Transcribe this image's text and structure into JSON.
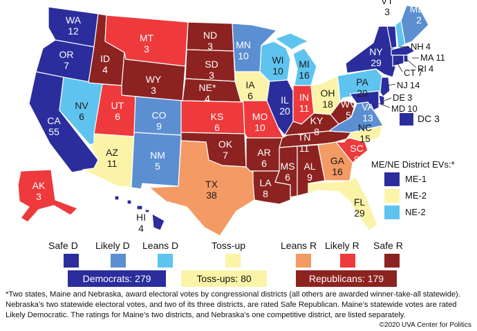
{
  "colors": {
    "safe_d": "#2b2d9c",
    "likely_d": "#5b8fd2",
    "leans_d": "#5ec4ef",
    "tossup": "#fbf4a8",
    "leans_r": "#f49a64",
    "likely_r": "#ee3a3c",
    "safe_r": "#8c2321"
  },
  "states": [
    {
      "abbr": "WA",
      "ev": "12",
      "rating": "safe_d"
    },
    {
      "abbr": "OR",
      "ev": "7",
      "rating": "safe_d"
    },
    {
      "abbr": "CA",
      "ev": "55",
      "rating": "safe_d"
    },
    {
      "abbr": "NV",
      "ev": "6",
      "rating": "leans_d"
    },
    {
      "abbr": "ID",
      "ev": "4",
      "rating": "safe_r"
    },
    {
      "abbr": "MT",
      "ev": "3",
      "rating": "likely_r"
    },
    {
      "abbr": "WY",
      "ev": "3",
      "rating": "safe_r"
    },
    {
      "abbr": "UT",
      "ev": "6",
      "rating": "likely_r"
    },
    {
      "abbr": "AZ",
      "ev": "11",
      "rating": "tossup"
    },
    {
      "abbr": "CO",
      "ev": "9",
      "rating": "likely_d"
    },
    {
      "abbr": "NM",
      "ev": "5",
      "rating": "likely_d"
    },
    {
      "abbr": "ND",
      "ev": "3",
      "rating": "safe_r"
    },
    {
      "abbr": "SD",
      "ev": "3",
      "rating": "safe_r"
    },
    {
      "abbr": "NE*",
      "ev": "4",
      "rating": "safe_r"
    },
    {
      "abbr": "KS",
      "ev": "6",
      "rating": "likely_r"
    },
    {
      "abbr": "OK",
      "ev": "7",
      "rating": "safe_r"
    },
    {
      "abbr": "TX",
      "ev": "38",
      "rating": "leans_r"
    },
    {
      "abbr": "MN",
      "ev": "10",
      "rating": "likely_d"
    },
    {
      "abbr": "IA",
      "ev": "6",
      "rating": "tossup"
    },
    {
      "abbr": "MO",
      "ev": "10",
      "rating": "likely_r"
    },
    {
      "abbr": "AR",
      "ev": "6",
      "rating": "safe_r"
    },
    {
      "abbr": "LA",
      "ev": "8",
      "rating": "safe_r"
    },
    {
      "abbr": "WI",
      "ev": "10",
      "rating": "leans_d"
    },
    {
      "abbr": "IL",
      "ev": "20",
      "rating": "safe_d"
    },
    {
      "abbr": "MI",
      "ev": "16",
      "rating": "leans_d"
    },
    {
      "abbr": "IN",
      "ev": "11",
      "rating": "likely_r"
    },
    {
      "abbr": "OH",
      "ev": "18",
      "rating": "tossup"
    },
    {
      "abbr": "KY",
      "ev": "8",
      "rating": "safe_r"
    },
    {
      "abbr": "TN",
      "ev": "11",
      "rating": "safe_r"
    },
    {
      "abbr": "MS",
      "ev": "6",
      "rating": "safe_r"
    },
    {
      "abbr": "AL",
      "ev": "9",
      "rating": "safe_r"
    },
    {
      "abbr": "GA",
      "ev": "16",
      "rating": "leans_r"
    },
    {
      "abbr": "FL",
      "ev": "29",
      "rating": "tossup"
    },
    {
      "abbr": "SC",
      "ev": "9",
      "rating": "likely_r"
    },
    {
      "abbr": "NC",
      "ev": "15",
      "rating": "tossup"
    },
    {
      "abbr": "VA",
      "ev": "13",
      "rating": "likely_d"
    },
    {
      "abbr": "WV",
      "ev": "5",
      "rating": "safe_r"
    },
    {
      "abbr": "PA",
      "ev": "20",
      "rating": "leans_d"
    },
    {
      "abbr": "NY",
      "ev": "29",
      "rating": "safe_d"
    },
    {
      "abbr": "VT",
      "ev": "3",
      "rating": "safe_d"
    },
    {
      "abbr": "ME*",
      "ev": "2",
      "rating": "likely_d"
    },
    {
      "abbr": "AK",
      "ev": "3",
      "rating": "likely_r"
    },
    {
      "abbr": "HI",
      "ev": "4",
      "rating": "safe_d"
    }
  ],
  "small_states": [
    {
      "abbr": "NH",
      "ev": "4",
      "rating": "leans_d"
    },
    {
      "abbr": "MA",
      "ev": "11",
      "rating": "safe_d"
    },
    {
      "abbr": "RI",
      "ev": "4",
      "rating": "safe_d"
    },
    {
      "abbr": "CT",
      "ev": "7",
      "rating": "safe_d"
    },
    {
      "abbr": "NJ",
      "ev": "14",
      "rating": "safe_d"
    },
    {
      "abbr": "DE",
      "ev": "3",
      "rating": "safe_d"
    },
    {
      "abbr": "MD",
      "ev": "10",
      "rating": "safe_d"
    }
  ],
  "dc": {
    "abbr": "DC",
    "ev": "3"
  },
  "districts": {
    "title": "ME/NE District EVs:*",
    "items": [
      {
        "label": "ME-1",
        "rating": "safe_d"
      },
      {
        "label": "ME-2",
        "rating": "tossup"
      },
      {
        "label": "NE-2",
        "rating": "leans_d"
      }
    ]
  },
  "legend": [
    {
      "label": "Safe D",
      "rating": "safe_d"
    },
    {
      "label": "Likely D",
      "rating": "likely_d"
    },
    {
      "label": "Leans D",
      "rating": "leans_d"
    },
    {
      "label": "Toss-up",
      "rating": "tossup"
    },
    {
      "label": "Leans R",
      "rating": "leans_r"
    },
    {
      "label": "Likely R",
      "rating": "likely_r"
    },
    {
      "label": "Safe R",
      "rating": "safe_r"
    }
  ],
  "totals": {
    "democrats": "Democrats: 279",
    "tossups": "Toss-ups: 80",
    "republicans": "Republicans: 179"
  },
  "footnote": "*Two states, Maine and Nebraska, award electoral votes by congressional districts (all others are awarded winner-take-all statewide). Nebraska’s two statewide electoral votes, and two of its three districts, are rated Safe Republican. Maine’s statewide votes are rated Likely Democratic. The ratings for Maine’s two districts, and Nebraska’s one competitive district, are listed separately.",
  "copyright": "©2020 UVA Center for Politics"
}
